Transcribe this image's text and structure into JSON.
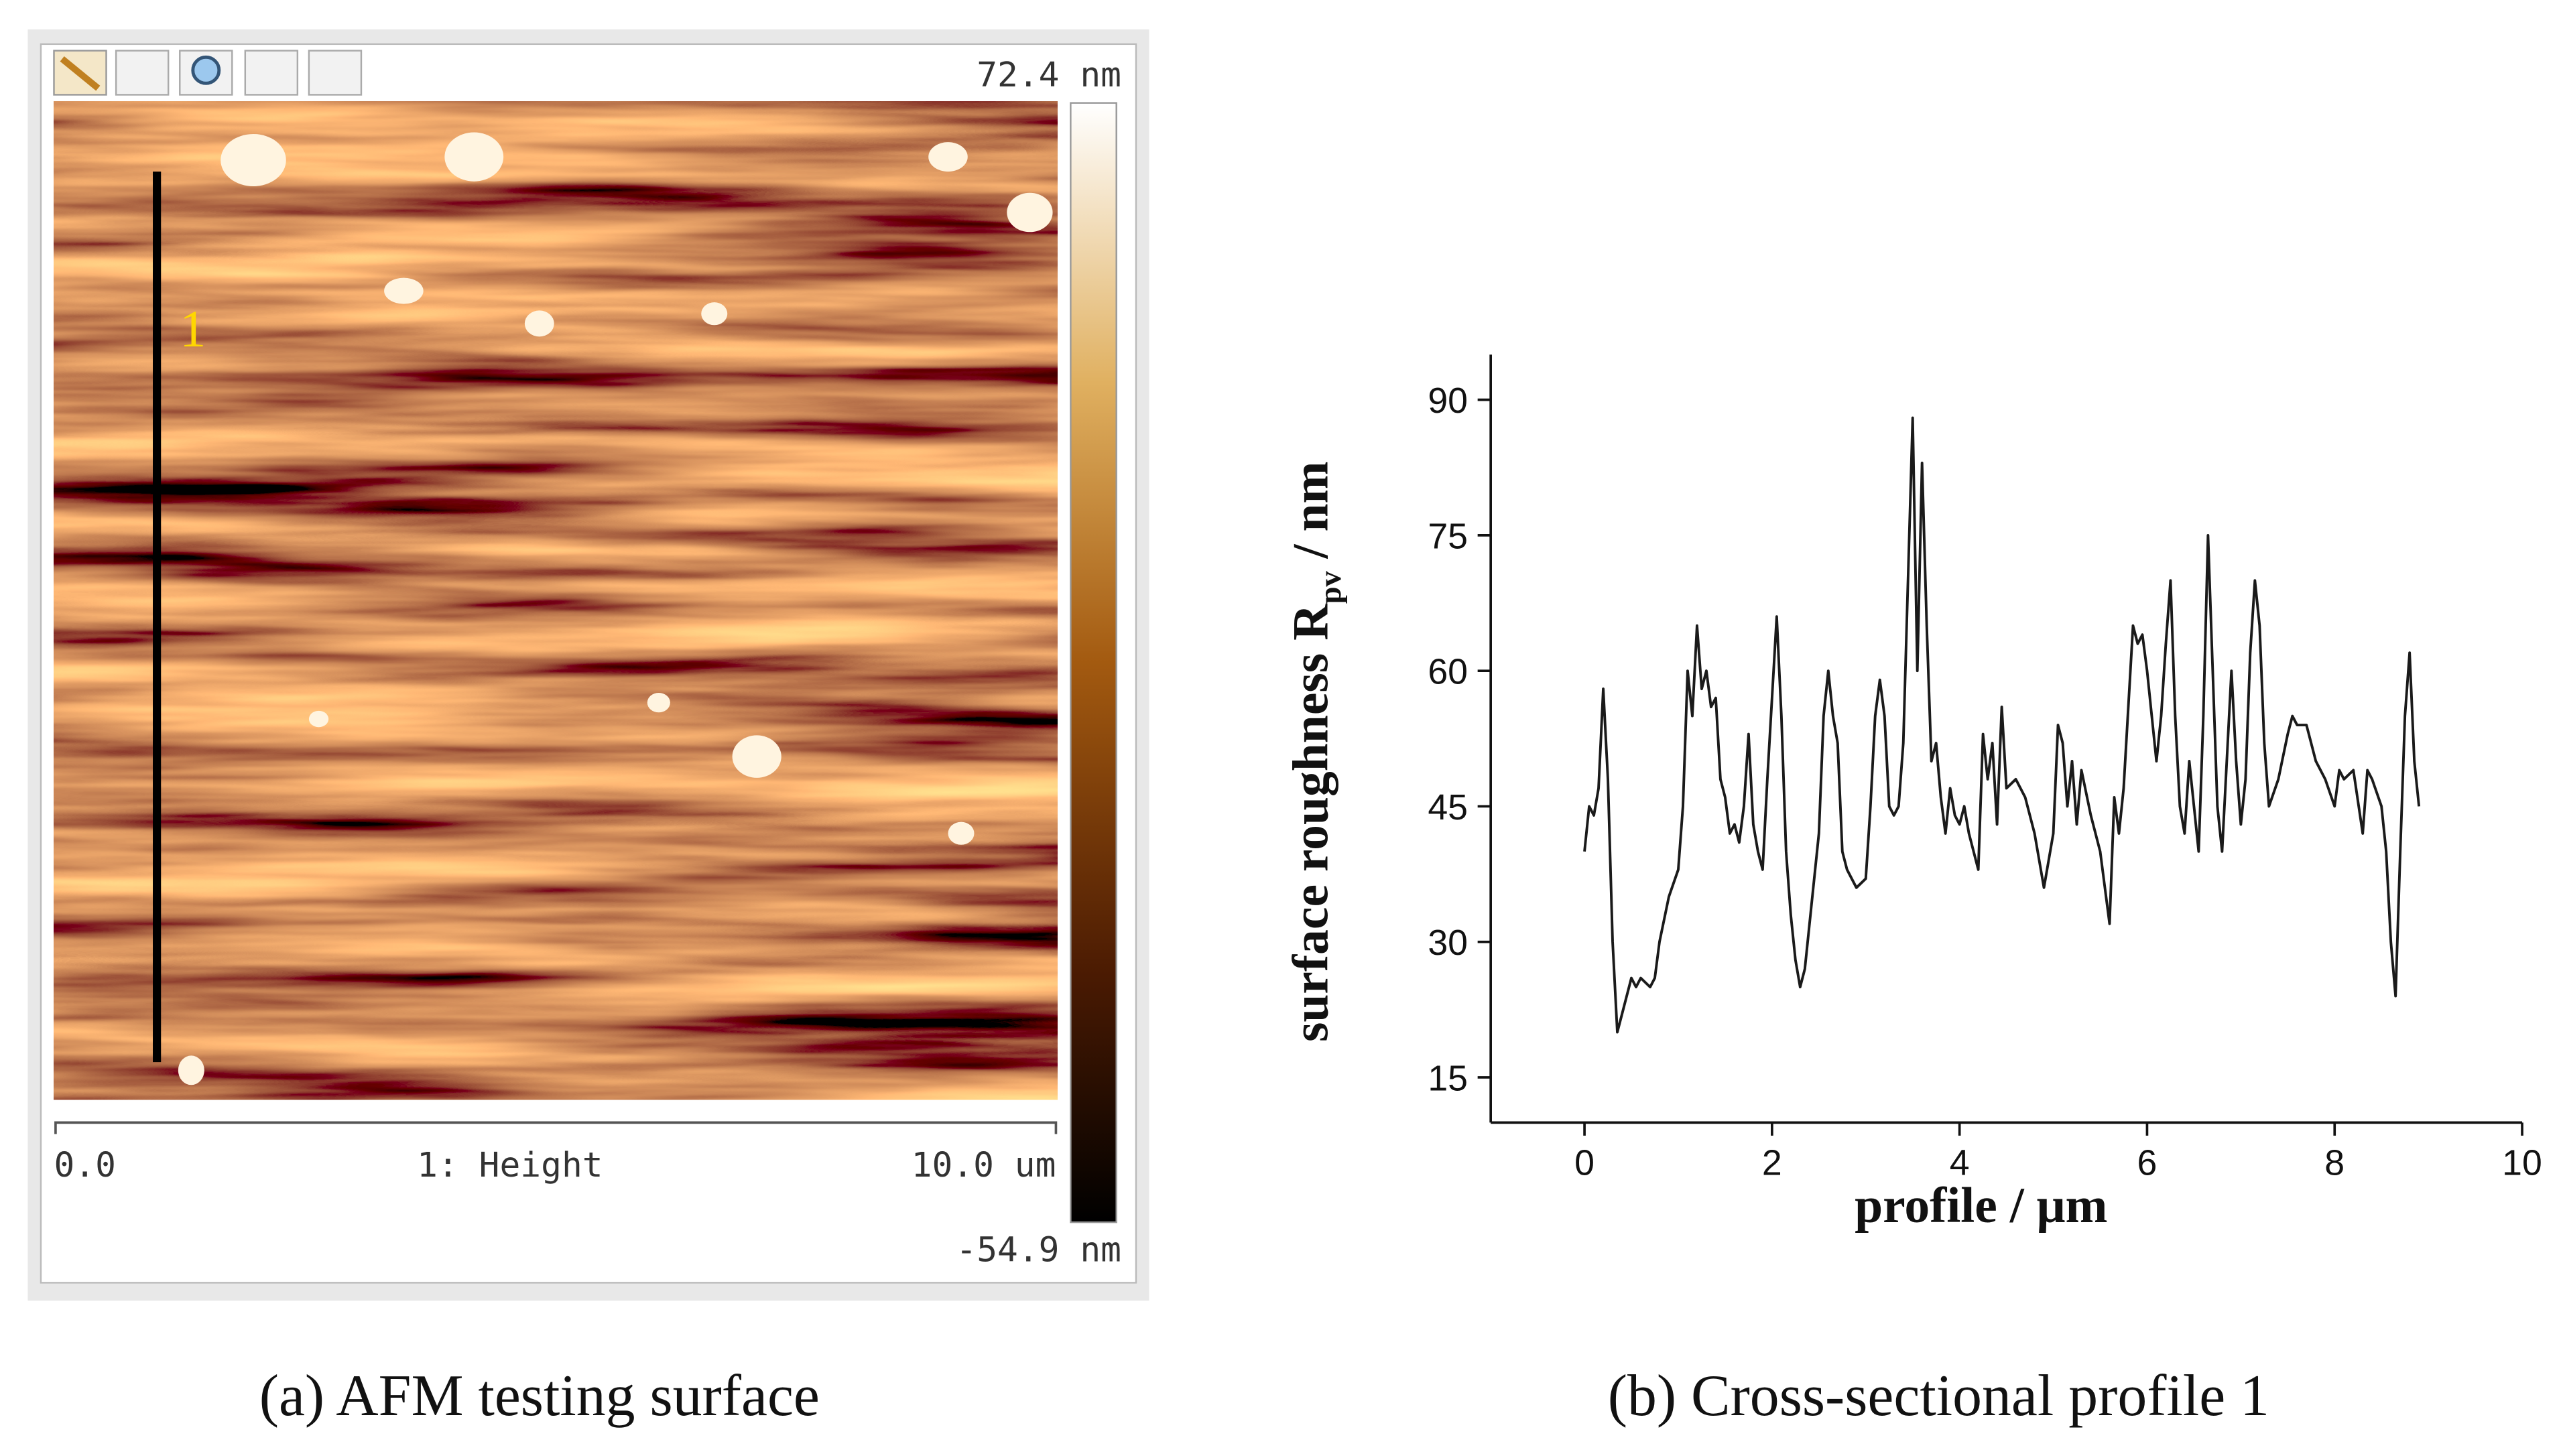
{
  "afm": {
    "color_max": "72.4 nm",
    "color_min": "-54.9 nm",
    "scale_start": "0.0",
    "channel": "1: Height",
    "scale_end": "10.0 um",
    "profile_marker": "1"
  },
  "captions": [
    "(a) AFM testing surface",
    "(b) Cross-sectional profile 1"
  ],
  "chart_data": {
    "type": "line",
    "x_label": "profile   / μm",
    "y_label": {
      "main": "surface roughness  R",
      "sub": "pv",
      "unit": " / nm"
    },
    "xlim": [
      -1,
      10
    ],
    "xticks": [
      0,
      2,
      4,
      6,
      8,
      10
    ],
    "ylim": [
      10,
      95
    ],
    "yticks": [
      15,
      30,
      45,
      60,
      75,
      90
    ],
    "x": [
      0,
      0.05,
      0.1,
      0.15,
      0.2,
      0.25,
      0.3,
      0.35,
      0.4,
      0.5,
      0.55,
      0.6,
      0.7,
      0.75,
      0.8,
      0.9,
      1.0,
      1.05,
      1.1,
      1.15,
      1.2,
      1.25,
      1.3,
      1.35,
      1.4,
      1.45,
      1.5,
      1.55,
      1.6,
      1.65,
      1.7,
      1.75,
      1.8,
      1.85,
      1.9,
      1.95,
      2.0,
      2.05,
      2.1,
      2.15,
      2.2,
      2.25,
      2.3,
      2.35,
      2.4,
      2.5,
      2.55,
      2.6,
      2.65,
      2.7,
      2.75,
      2.8,
      2.9,
      3.0,
      3.05,
      3.1,
      3.15,
      3.2,
      3.25,
      3.3,
      3.35,
      3.4,
      3.45,
      3.5,
      3.55,
      3.6,
      3.65,
      3.7,
      3.75,
      3.8,
      3.85,
      3.9,
      3.95,
      4.0,
      4.05,
      4.1,
      4.15,
      4.2,
      4.25,
      4.3,
      4.35,
      4.4,
      4.45,
      4.5,
      4.6,
      4.7,
      4.8,
      4.9,
      5.0,
      5.05,
      5.1,
      5.15,
      5.2,
      5.25,
      5.3,
      5.4,
      5.5,
      5.55,
      5.6,
      5.65,
      5.7,
      5.75,
      5.8,
      5.85,
      5.9,
      5.95,
      6.0,
      6.05,
      6.1,
      6.15,
      6.2,
      6.25,
      6.3,
      6.35,
      6.4,
      6.45,
      6.5,
      6.55,
      6.6,
      6.65,
      6.7,
      6.75,
      6.8,
      6.85,
      6.9,
      6.95,
      7.0,
      7.05,
      7.1,
      7.15,
      7.2,
      7.25,
      7.3,
      7.4,
      7.5,
      7.55,
      7.6,
      7.7,
      7.8,
      7.9,
      8.0,
      8.05,
      8.1,
      8.2,
      8.3,
      8.35,
      8.4,
      8.5,
      8.55,
      8.6,
      8.65,
      8.7,
      8.75,
      8.8,
      8.85,
      8.9
    ],
    "series": [
      {
        "color": "#1a1a1a",
        "values": [
          40,
          45,
          44,
          47,
          58,
          48,
          30,
          20,
          22,
          26,
          25,
          26,
          25,
          26,
          30,
          35,
          38,
          45,
          60,
          55,
          65,
          58,
          60,
          56,
          57,
          48,
          46,
          42,
          43,
          41,
          45,
          53,
          43,
          40,
          38,
          48,
          57,
          66,
          55,
          40,
          33,
          28,
          25,
          27,
          32,
          42,
          55,
          60,
          55,
          52,
          40,
          38,
          36,
          37,
          45,
          55,
          59,
          55,
          45,
          44,
          45,
          52,
          70,
          88,
          60,
          83,
          65,
          50,
          52,
          46,
          42,
          47,
          44,
          43,
          45,
          42,
          40,
          38,
          53,
          48,
          52,
          43,
          56,
          47,
          48,
          46,
          42,
          36,
          42,
          54,
          52,
          45,
          50,
          43,
          49,
          44,
          40,
          36,
          32,
          46,
          42,
          47,
          56,
          65,
          63,
          64,
          60,
          55,
          50,
          55,
          63,
          70,
          55,
          45,
          42,
          50,
          45,
          40,
          55,
          75,
          60,
          45,
          40,
          50,
          60,
          50,
          43,
          48,
          62,
          70,
          65,
          52,
          45,
          48,
          53,
          55,
          54,
          54,
          50,
          48,
          45,
          49,
          48,
          49,
          42,
          49,
          48,
          45,
          40,
          30,
          24,
          40,
          55,
          62,
          50,
          45
        ]
      }
    ]
  }
}
